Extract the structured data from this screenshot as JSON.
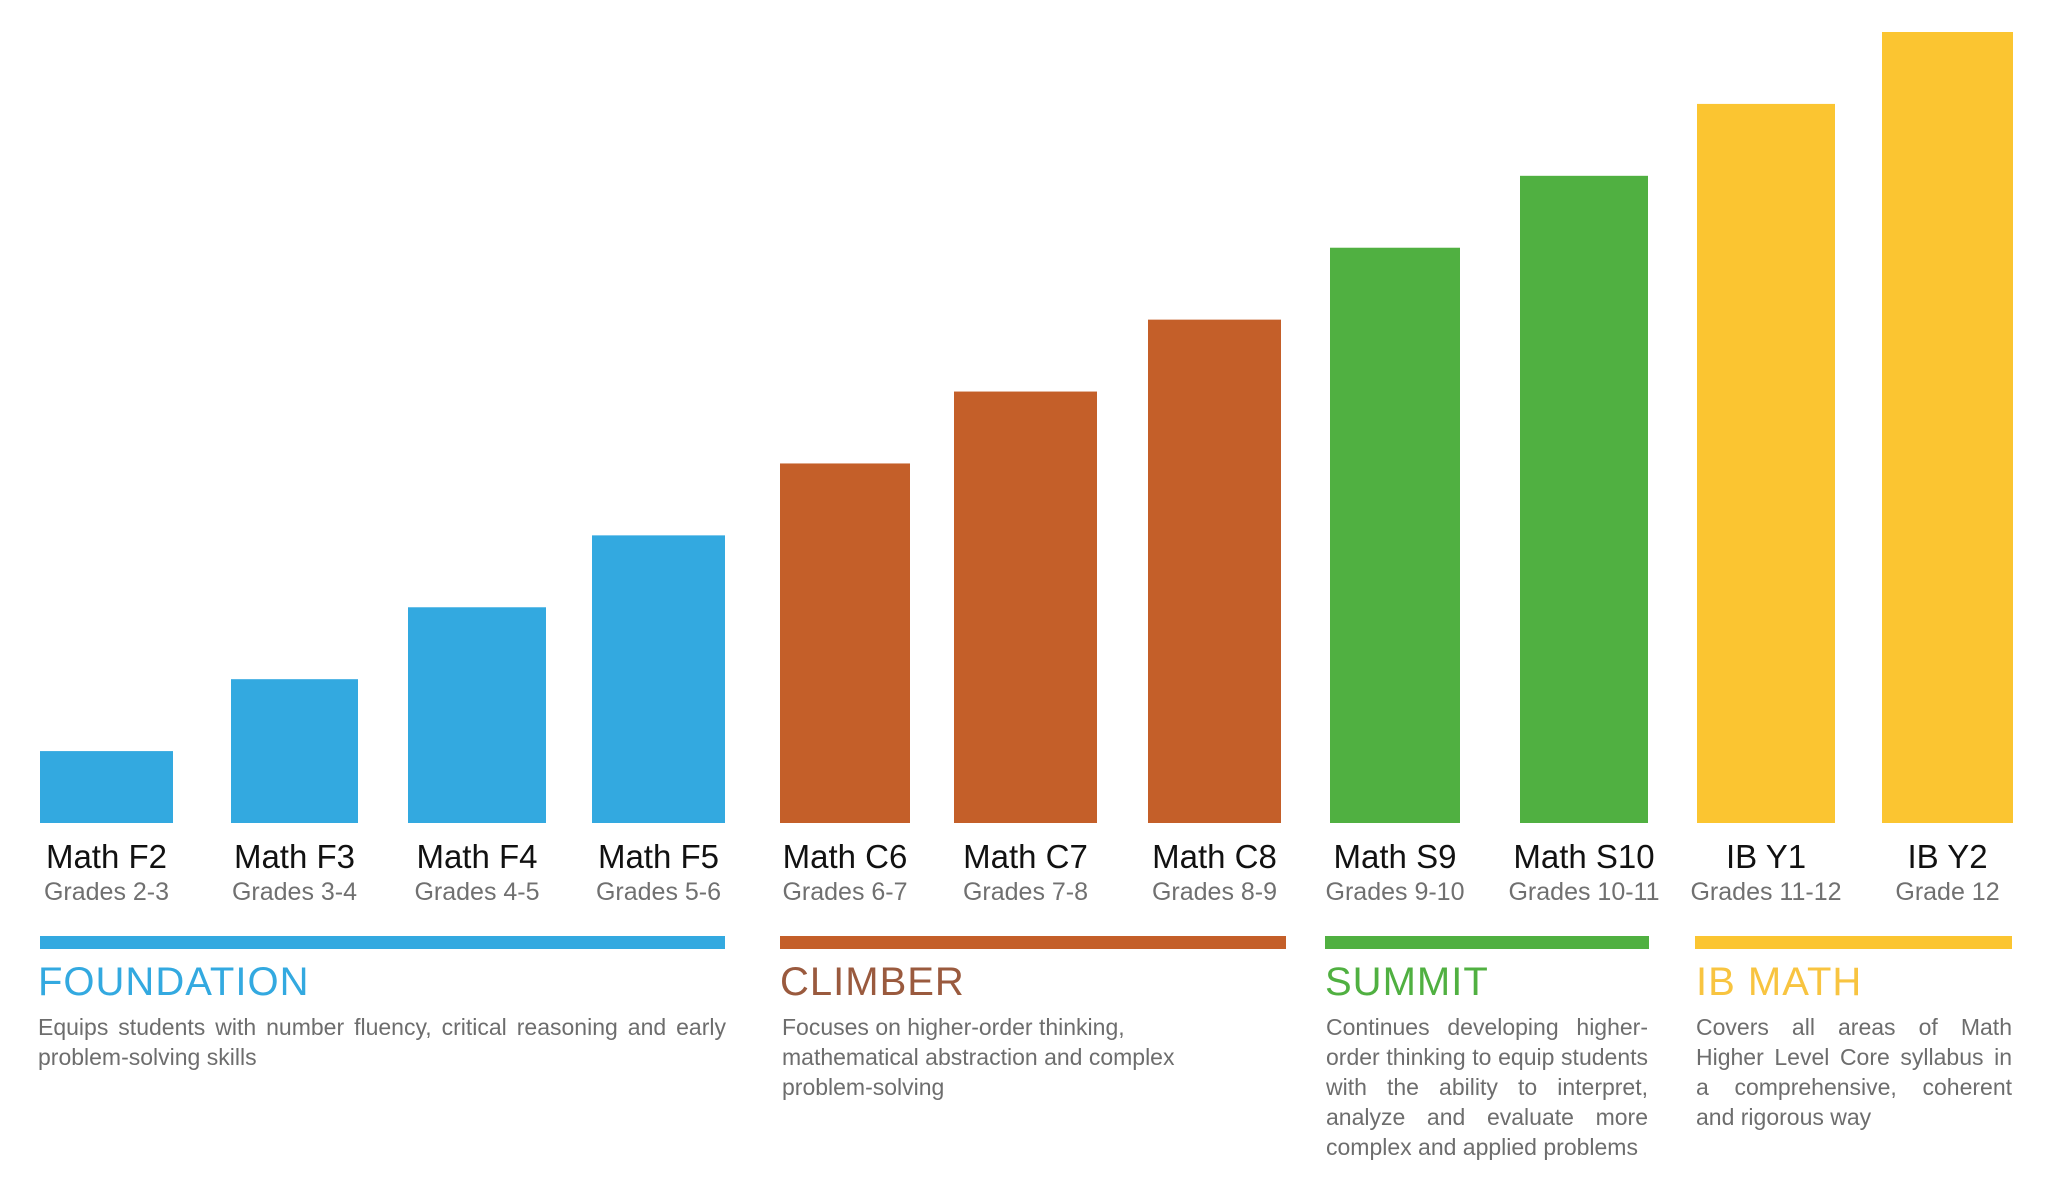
{
  "chart_data": {
    "type": "bar",
    "title": "",
    "xlabel": "",
    "ylabel": "",
    "axis_visible": false,
    "grid": false,
    "legend": "none",
    "categories": [
      "Math F2",
      "Math F3",
      "Math F4",
      "Math F5",
      "Math C6",
      "Math C7",
      "Math C8",
      "Math S9",
      "Math S10",
      "IB Y1",
      "IB Y2"
    ],
    "grades": [
      "Grades 2-3",
      "Grades 3-4",
      "Grades 4-5",
      "Grades 5-6",
      "Grades 6-7",
      "Grades 7-8",
      "Grades 8-9",
      "Grades 9-10",
      "Grades 10-11",
      "Grades 11-12",
      "Grade 12"
    ],
    "values": [
      1,
      2,
      3,
      4,
      5,
      6,
      7,
      8,
      9,
      10,
      11
    ],
    "ylim": [
      0,
      11
    ],
    "groups": [
      {
        "name": "FOUNDATION",
        "color": "#33A9E0",
        "title_color": "#33A9E0",
        "description": "Equips students with number fluency, critical reasoning and early problem-solving skills",
        "categories": [
          "Math F2",
          "Math F3",
          "Math F4",
          "Math F5"
        ]
      },
      {
        "name": "CLIMBER",
        "color": "#C45F29",
        "title_color": "#9A5A3E",
        "description": "Focuses on higher-order thinking, mathematical abstraction and complex problem-solving",
        "categories": [
          "Math C6",
          "Math C7",
          "Math C8"
        ]
      },
      {
        "name": "SUMMIT",
        "color": "#50B041",
        "title_color": "#50B041",
        "description": "Continues developing higher-order thinking to equip students with the ability to interpret, analyze and evaluate more complex and applied problems",
        "categories": [
          "Math S9",
          "Math S10"
        ]
      },
      {
        "name": "IB MATH",
        "color": "#FBC531",
        "title_color": "#F8C440",
        "description": "Covers all areas of Math Higher Level Core syllabus in a comprehensive, coherent and rigorous way",
        "categories": [
          "IB Y1",
          "IB Y2"
        ]
      }
    ]
  }
}
